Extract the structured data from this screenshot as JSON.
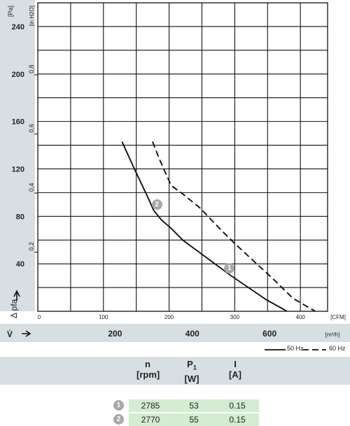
{
  "chart_data": {
    "type": "line",
    "y_axis_left": {
      "unit": "[Pa]",
      "label": "Δ pfa",
      "ticks": [
        40,
        80,
        120,
        160,
        200,
        240
      ],
      "range": [
        0,
        250
      ]
    },
    "y_axis_inner": {
      "unit": "[in H2O]",
      "ticks": [
        "0,2",
        "0,4",
        "0,6",
        "0,8"
      ]
    },
    "x_axis_top": {
      "unit": "[CFM]",
      "ticks": [
        "0",
        "100",
        "200",
        "300",
        "400"
      ]
    },
    "x_axis_bottom": {
      "unit": "[m³/h]",
      "label": "V̇",
      "ticks": [
        "200",
        "400",
        "600"
      ],
      "range": [
        0,
        720
      ]
    },
    "series": [
      {
        "name": "50 Hz",
        "style": "solid",
        "x_m3h": [
          218,
          250,
          282,
          300,
          320,
          345,
          375,
          425,
          500,
          590,
          645
        ],
        "y_pa": [
          143,
          120,
          98,
          85,
          77,
          70,
          60,
          48,
          30,
          10,
          0
        ]
      },
      {
        "name": "60 Hz",
        "style": "dashed",
        "x_m3h": [
          297,
          315,
          330,
          345,
          375,
          420,
          470,
          510,
          560,
          610,
          660,
          718
        ],
        "y_pa": [
          143,
          128,
          117,
          106,
          99,
          87,
          70,
          57,
          42,
          27,
          11,
          0
        ]
      }
    ],
    "operating_points": [
      {
        "id": "2",
        "x_m3h": 308,
        "y_pa": 90
      },
      {
        "id": "1",
        "x_m3h": 496,
        "y_pa": 36
      }
    ],
    "grid": true
  },
  "legend": {
    "items": [
      "50 Hz",
      "60 Hz"
    ]
  },
  "table": {
    "headers": {
      "n": "n",
      "n_unit": "[rpm]",
      "p": "P",
      "p_sub": "1",
      "p_unit": "[W]",
      "i": "I",
      "i_unit": "[A]"
    },
    "rows": [
      {
        "id": "1",
        "rpm": "2785",
        "watts": "53",
        "amps": "0.15"
      },
      {
        "id": "2",
        "rpm": "2770",
        "watts": "55",
        "amps": "0.15"
      }
    ]
  }
}
